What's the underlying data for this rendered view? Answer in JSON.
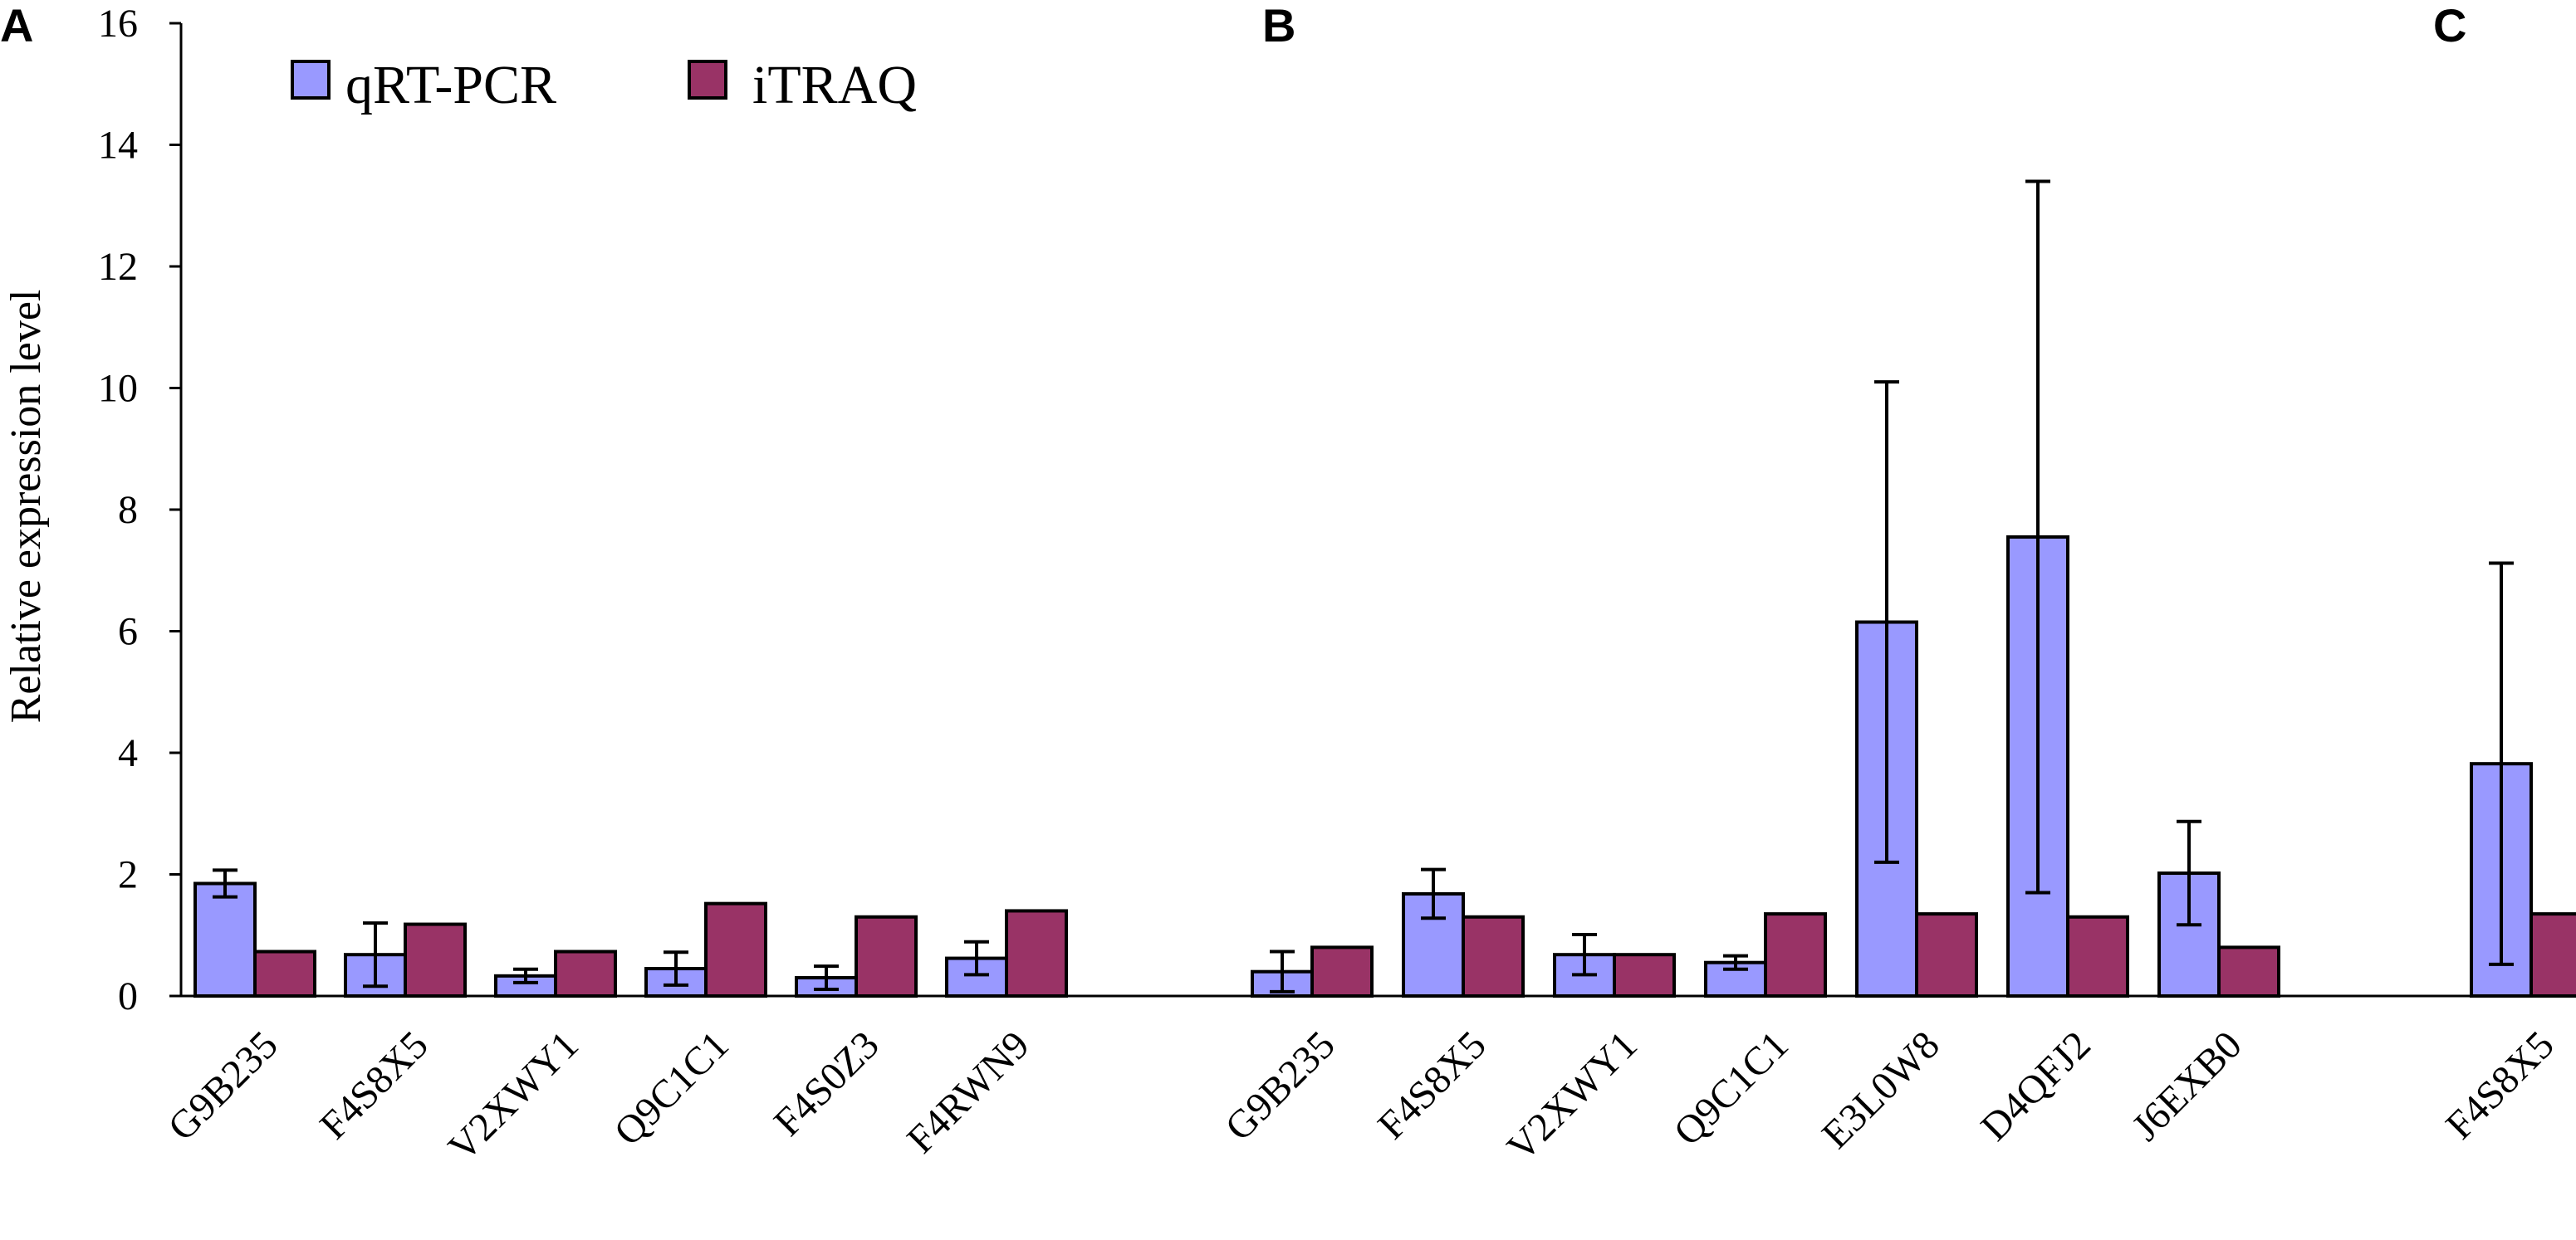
{
  "chart_data": {
    "type": "bar",
    "ylabel": "Relative expression level",
    "ylim": [
      0,
      16
    ],
    "yticks": [
      0,
      2,
      4,
      6,
      8,
      10,
      12,
      14,
      16
    ],
    "legend": {
      "placement": "top-left",
      "entries": [
        {
          "name": "qRT-PCR",
          "color": "#9999ff"
        },
        {
          "name": "iTRAQ",
          "color": "#993366"
        }
      ]
    },
    "panels": [
      {
        "label": "A",
        "categories": [
          "G9B235",
          "F4S8X5",
          "V2XWY1",
          "Q9C1C1",
          "F4S0Z3",
          "F4RWN9"
        ],
        "series": [
          {
            "name": "qRT-PCR",
            "values": [
              1.85,
              0.68,
              0.33,
              0.45,
              0.3,
              0.62
            ],
            "errors": [
              0.22,
              0.52,
              0.11,
              0.27,
              0.19,
              0.27
            ]
          },
          {
            "name": "iTRAQ",
            "values": [
              0.73,
              1.18,
              0.73,
              1.52,
              1.3,
              1.4
            ]
          }
        ]
      },
      {
        "label": "B",
        "categories": [
          "G9B235",
          "F4S8X5",
          "V2XWY1",
          "Q9C1C1",
          "E3L0W8",
          "D4QFJ2",
          "J6EXB0"
        ],
        "series": [
          {
            "name": "qRT-PCR",
            "values": [
              0.4,
              1.68,
              0.68,
              0.55,
              6.15,
              7.55,
              2.02
            ],
            "errors": [
              0.33,
              0.4,
              0.33,
              0.11,
              3.95,
              5.85,
              0.85
            ]
          },
          {
            "name": "iTRAQ",
            "values": [
              0.8,
              1.3,
              0.68,
              1.35,
              1.35,
              1.3,
              0.8
            ]
          }
        ]
      },
      {
        "label": "C",
        "categories": [
          "F4S8X5"
        ],
        "series": [
          {
            "name": "qRT-PCR",
            "values": [
              3.82
            ],
            "errors": [
              3.3
            ]
          },
          {
            "name": "iTRAQ",
            "values": [
              1.35
            ]
          }
        ]
      }
    ]
  }
}
